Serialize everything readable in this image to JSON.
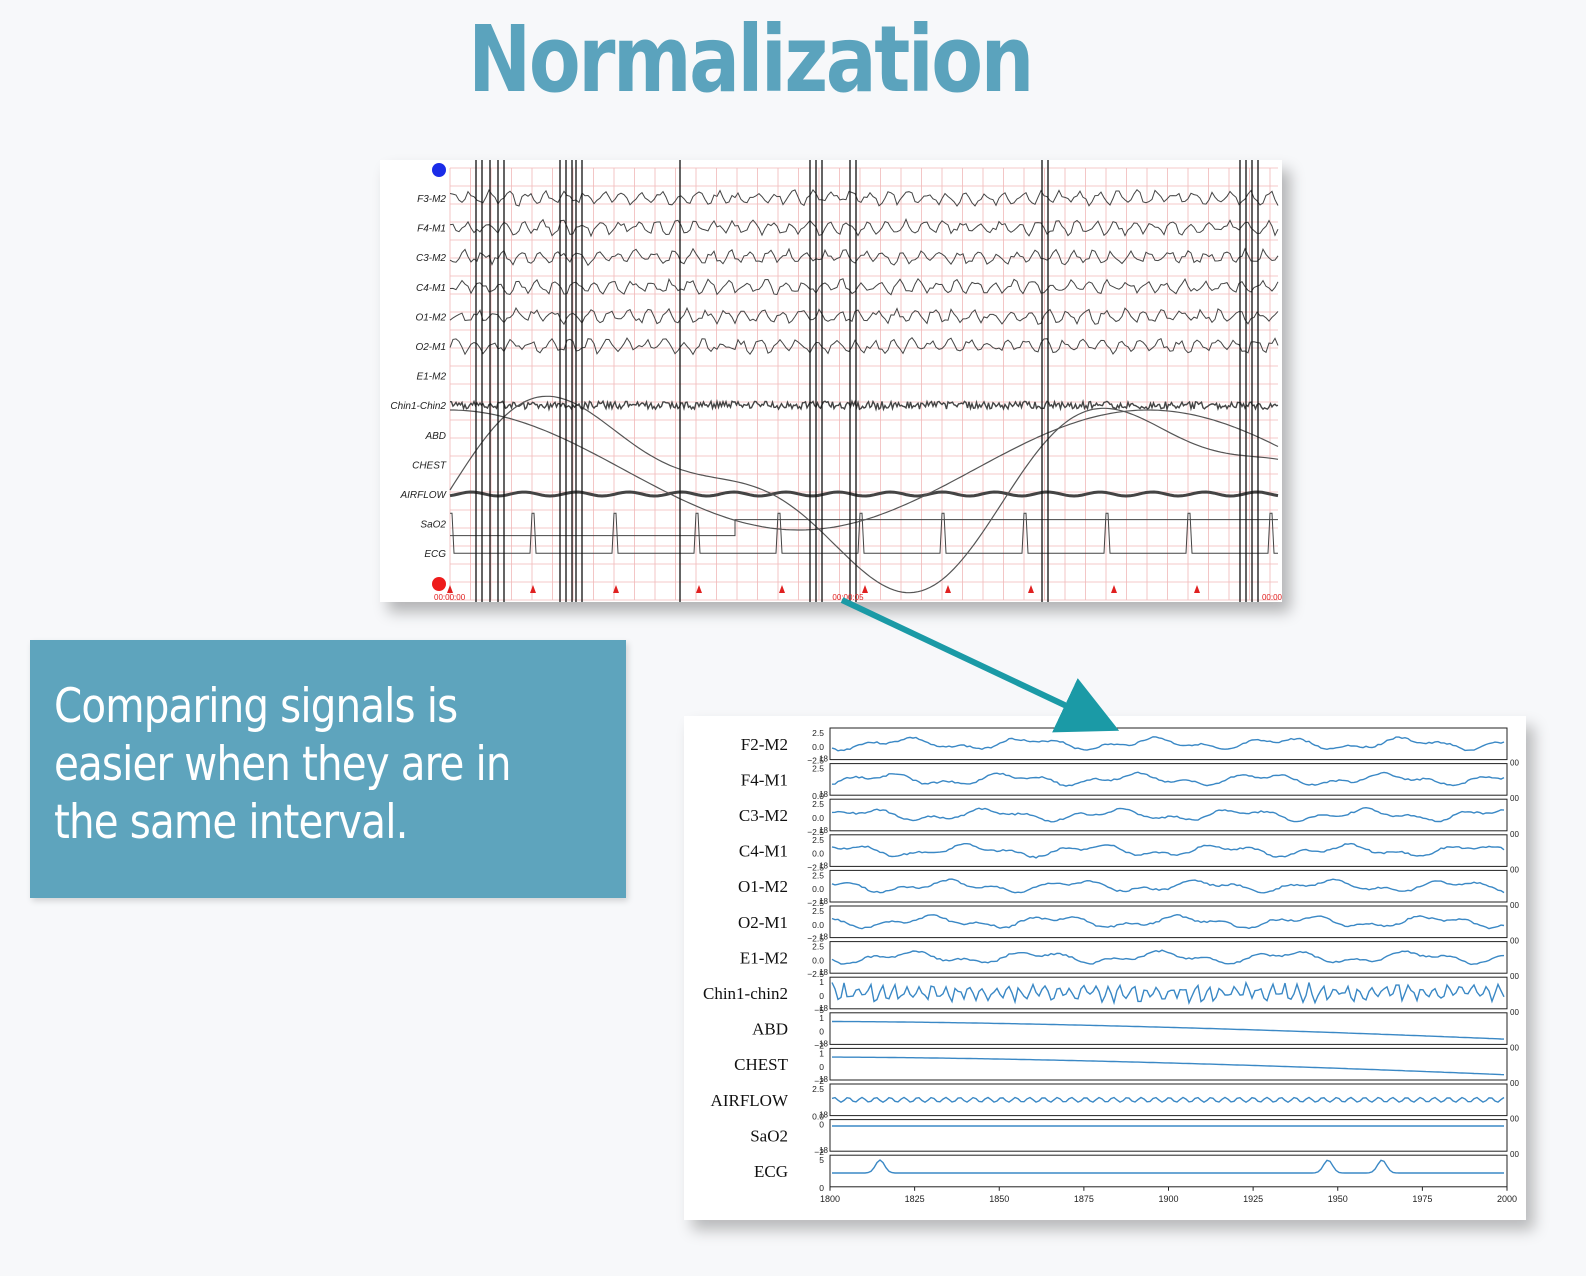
{
  "title": "Normalization",
  "caption": "Comparing signals is easier when they are in the same interval.",
  "colors": {
    "accent": "#5ba3bd",
    "caption_bg": "#5ea4bd",
    "arrow": "#1b9aa6",
    "grid": "#f0b8b8",
    "trace": "#444444",
    "norm_trace": "#3a88c5"
  },
  "raw_chart": {
    "channels": [
      "F3-M2",
      "F4-M1",
      "C3-M2",
      "C4-M1",
      "O1-M2",
      "O2-M1",
      "E1-M2",
      "Chin1-Chin2",
      "ABD",
      "CHEST",
      "AIRFLOW",
      "SaO2",
      "ECG"
    ],
    "time_labels": [
      "00:00:00",
      "00:00:05",
      "00:00"
    ],
    "markers": [
      "blue-dot",
      "red-dot"
    ]
  },
  "norm_chart": {
    "channels": [
      "F2-M2",
      "F4-M1",
      "C3-M2",
      "C4-M1",
      "O1-M2",
      "O2-M1",
      "E1-M2",
      "Chin1-chin2",
      "ABD",
      "CHEST",
      "AIRFLOW",
      "SaO2",
      "ECG"
    ],
    "y_ticks": [
      [
        "2.5",
        "0.0",
        "−2.5"
      ],
      [
        "2.5",
        "0.0"
      ],
      [
        "2.5",
        "0.0",
        "−2.5"
      ],
      [
        "2.5",
        "0.0",
        "−2.5"
      ],
      [
        "2.5",
        "0.0",
        "−2.5"
      ],
      [
        "2.5",
        "0.0",
        "−2.5"
      ],
      [
        "2.5",
        "0.0",
        "−2.5"
      ],
      [
        "1",
        "0",
        "−5"
      ],
      [
        "1",
        "0",
        "−2"
      ],
      [
        "1",
        "0",
        "−2"
      ],
      [
        "2.5",
        "0.0"
      ],
      [
        "0",
        "−2"
      ],
      [
        "5",
        "0"
      ]
    ],
    "overlap_label": "18",
    "right_label": "00",
    "x_ticks": [
      "1800",
      "1825",
      "1850",
      "1875",
      "1900",
      "1925",
      "1950",
      "1975",
      "2000"
    ],
    "x_range": [
      1800,
      2000
    ]
  }
}
